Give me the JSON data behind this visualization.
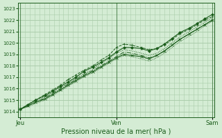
{
  "title": "Pression niveau de la mer( hPa )",
  "bg_color": "#d4ecd4",
  "grid_color": "#aaccaa",
  "line_color": "#1a5c1a",
  "ylim": [
    1013.5,
    1023.5
  ],
  "yticks": [
    1014,
    1015,
    1016,
    1017,
    1018,
    1019,
    1020,
    1021,
    1022,
    1023
  ],
  "xtick_labels": [
    "Jeu",
    "Ven",
    "Sam"
  ],
  "xtick_positions": [
    0.0,
    0.5,
    1.0
  ],
  "vline_positions": [
    0.0,
    0.5,
    1.0
  ],
  "series": [
    {
      "x": [
        0.0,
        0.04,
        0.08,
        0.13,
        0.17,
        0.21,
        0.25,
        0.29,
        0.33,
        0.38,
        0.42,
        0.46,
        0.5,
        0.54,
        0.58,
        0.63,
        0.67,
        0.71,
        0.75,
        0.79,
        0.83,
        0.88,
        0.92,
        0.96,
        1.0
      ],
      "y": [
        1014.2,
        1014.6,
        1015.0,
        1015.4,
        1015.8,
        1016.2,
        1016.6,
        1017.0,
        1017.5,
        1017.9,
        1018.3,
        1018.7,
        1019.2,
        1019.6,
        1019.6,
        1019.5,
        1019.3,
        1019.5,
        1019.9,
        1020.4,
        1020.9,
        1021.3,
        1021.7,
        1022.1,
        1022.5
      ],
      "style": "-",
      "marker": "D",
      "markersize": 2.0,
      "linewidth": 0.8,
      "zorder": 4
    },
    {
      "x": [
        0.0,
        0.04,
        0.08,
        0.13,
        0.17,
        0.21,
        0.25,
        0.29,
        0.33,
        0.38,
        0.42,
        0.46,
        0.5,
        0.54,
        0.58,
        0.63,
        0.67,
        0.71,
        0.75,
        0.79,
        0.83,
        0.88,
        0.92,
        0.96,
        1.0
      ],
      "y": [
        1014.2,
        1014.6,
        1015.0,
        1015.5,
        1015.9,
        1016.3,
        1016.8,
        1017.2,
        1017.6,
        1018.0,
        1018.5,
        1018.9,
        1019.6,
        1019.9,
        1019.8,
        1019.6,
        1019.4,
        1019.5,
        1019.8,
        1020.3,
        1020.8,
        1021.2,
        1021.6,
        1022.0,
        1022.3
      ],
      "style": "--",
      "marker": "+",
      "markersize": 3.5,
      "linewidth": 0.7,
      "zorder": 3
    },
    {
      "x": [
        0.0,
        0.04,
        0.08,
        0.13,
        0.17,
        0.21,
        0.25,
        0.29,
        0.33,
        0.38,
        0.42,
        0.46,
        0.5,
        0.54,
        0.58,
        0.63,
        0.67,
        0.71,
        0.75,
        0.79,
        0.83,
        0.88,
        0.92,
        0.96,
        1.0
      ],
      "y": [
        1014.2,
        1014.5,
        1014.9,
        1015.3,
        1015.7,
        1016.1,
        1016.5,
        1016.9,
        1017.3,
        1017.7,
        1018.2,
        1018.6,
        1019.1,
        1019.4,
        1019.3,
        1019.1,
        1018.9,
        1019.1,
        1019.5,
        1020.0,
        1020.5,
        1021.0,
        1021.4,
        1021.8,
        1022.2
      ],
      "style": ":",
      "marker": "None",
      "markersize": 2.0,
      "linewidth": 0.7,
      "zorder": 3
    },
    {
      "x": [
        0.0,
        0.04,
        0.08,
        0.13,
        0.17,
        0.21,
        0.25,
        0.29,
        0.33,
        0.38,
        0.42,
        0.46,
        0.5,
        0.54,
        0.58,
        0.63,
        0.67,
        0.71,
        0.75,
        0.79,
        0.83,
        0.88,
        0.92,
        0.96,
        1.0
      ],
      "y": [
        1014.2,
        1014.5,
        1014.8,
        1015.2,
        1015.6,
        1016.0,
        1016.4,
        1016.8,
        1017.2,
        1017.6,
        1018.0,
        1018.4,
        1018.8,
        1019.2,
        1019.1,
        1018.9,
        1018.7,
        1018.9,
        1019.3,
        1019.8,
        1020.3,
        1020.8,
        1021.2,
        1021.6,
        1022.0
      ],
      "style": "-.",
      "marker": "None",
      "markersize": 2.0,
      "linewidth": 0.7,
      "zorder": 3
    },
    {
      "x": [
        0.0,
        0.04,
        0.08,
        0.13,
        0.17,
        0.21,
        0.25,
        0.29,
        0.33,
        0.38,
        0.42,
        0.46,
        0.5,
        0.54,
        0.58,
        0.63,
        0.67,
        0.71,
        0.75,
        0.79,
        0.83,
        0.88,
        0.92,
        0.96,
        1.0
      ],
      "y": [
        1014.2,
        1014.5,
        1014.8,
        1015.1,
        1015.5,
        1015.9,
        1016.3,
        1016.7,
        1017.1,
        1017.5,
        1017.9,
        1018.3,
        1018.7,
        1019.0,
        1018.9,
        1018.8,
        1018.6,
        1018.9,
        1019.3,
        1019.8,
        1020.3,
        1020.8,
        1021.2,
        1021.6,
        1022.0
      ],
      "style": "-",
      "marker": "x",
      "markersize": 2.5,
      "linewidth": 0.8,
      "zorder": 4
    },
    {
      "x": [
        0.0,
        0.04,
        0.08,
        0.13,
        0.17,
        0.21,
        0.25,
        0.29,
        0.33,
        0.38,
        0.42,
        0.46,
        0.5,
        0.54,
        0.58,
        0.63,
        0.67,
        0.71,
        0.75,
        0.79,
        0.83,
        0.88,
        0.92,
        0.96,
        1.0
      ],
      "y": [
        1014.2,
        1014.4,
        1014.7,
        1015.0,
        1015.4,
        1015.8,
        1016.2,
        1016.6,
        1017.0,
        1017.4,
        1017.8,
        1018.2,
        1018.6,
        1018.9,
        1018.8,
        1018.6,
        1018.4,
        1018.7,
        1019.1,
        1019.6,
        1020.1,
        1020.6,
        1021.0,
        1021.5,
        1021.9
      ],
      "style": ":",
      "marker": "None",
      "markersize": 1.5,
      "linewidth": 0.6,
      "zorder": 2
    }
  ],
  "minor_grid_nx": 40,
  "minor_grid_ny": 20,
  "xlabel_fontsize": 7,
  "ytick_fontsize": 5,
  "xtick_fontsize": 6
}
